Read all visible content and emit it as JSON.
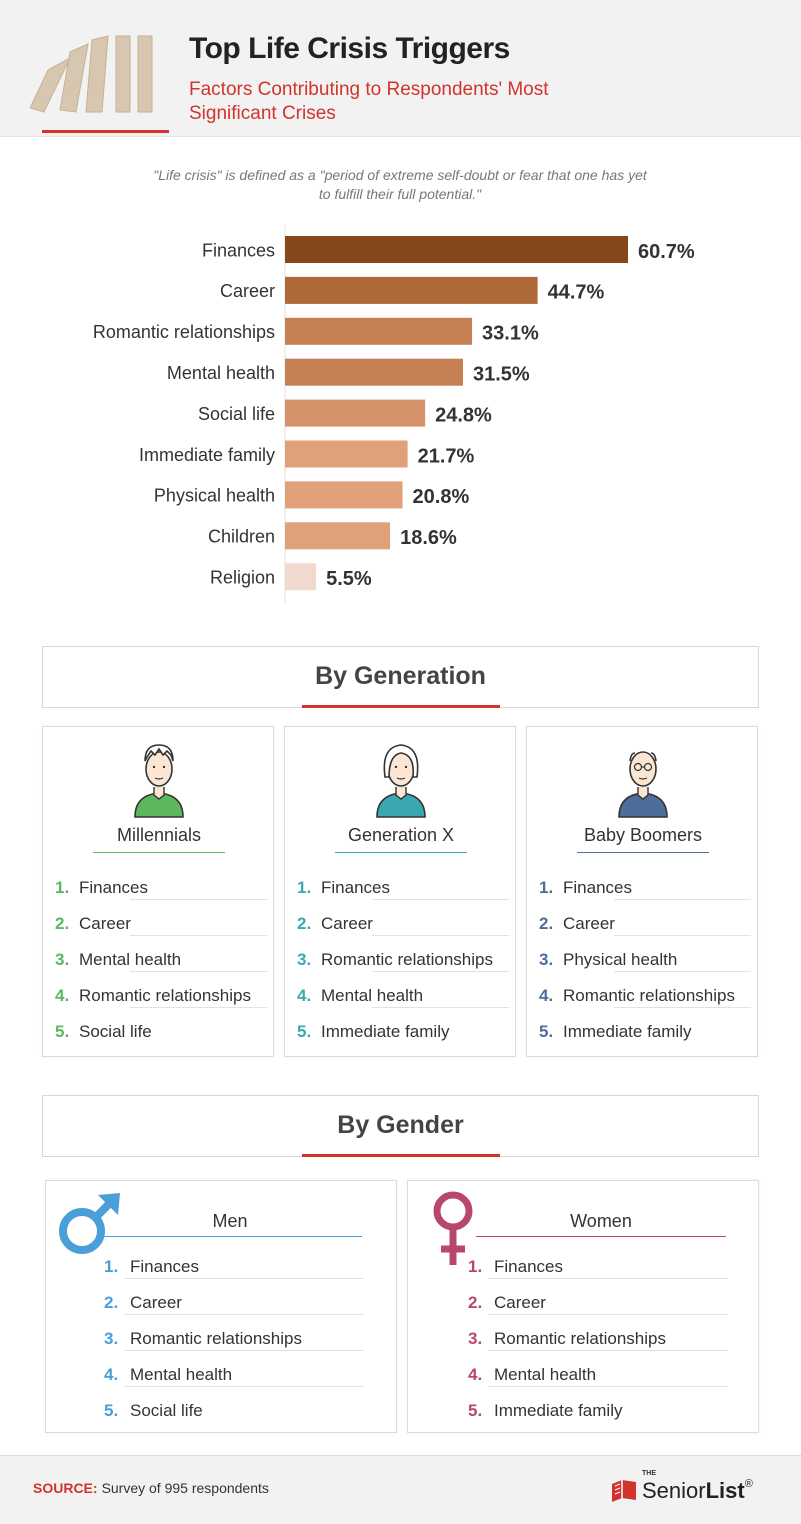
{
  "header": {
    "title": "Top Life Crisis Triggers",
    "subtitle": "Factors Contributing to Respondents' Most Significant Crises"
  },
  "definition": "\"Life crisis\" is defined as a \"period of extreme self-doubt or fear that one has yet to fulfill their full potential.\"",
  "chart_data": {
    "type": "bar",
    "orientation": "horizontal",
    "categories": [
      "Finances",
      "Career",
      "Romantic relationships",
      "Mental health",
      "Social life",
      "Immediate family",
      "Physical health",
      "Children",
      "Religion"
    ],
    "values": [
      60.7,
      44.7,
      33.1,
      31.5,
      24.8,
      21.7,
      20.8,
      18.6,
      5.5
    ],
    "labels": [
      "60.7%",
      "44.7%",
      "33.1%",
      "31.5%",
      "24.8%",
      "21.7%",
      "20.8%",
      "18.6%",
      "5.5%"
    ],
    "colors": [
      "#86471d",
      "#af6838",
      "#c67f52",
      "#c67f52",
      "#d4916a",
      "#dfa07a",
      "#dfa07a",
      "#dfa07a",
      "#f2d9cf"
    ],
    "xlim": [
      0,
      60.7
    ],
    "grid": false,
    "title": "",
    "xlabel": "",
    "ylabel": ""
  },
  "by_generation": {
    "heading": "By Generation",
    "groups": [
      {
        "name": "Millennials",
        "color": "#5cb85c",
        "items": [
          "Finances",
          "Career",
          "Mental health",
          "Romantic relationships",
          "Social life"
        ]
      },
      {
        "name": "Generation X",
        "color": "#3aa8b0",
        "items": [
          "Finances",
          "Career",
          "Romantic relationships",
          "Mental health",
          "Immediate family"
        ]
      },
      {
        "name": "Baby Boomers",
        "color": "#4f6d99",
        "items": [
          "Finances",
          "Career",
          "Physical health",
          "Romantic relationships",
          "Immediate family"
        ]
      }
    ]
  },
  "by_gender": {
    "heading": "By Gender",
    "groups": [
      {
        "name": "Men",
        "color": "#4a9fd8",
        "icon": "male-symbol-icon",
        "items": [
          "Finances",
          "Career",
          "Romantic relationships",
          "Mental health",
          "Social life"
        ]
      },
      {
        "name": "Women",
        "color": "#b8476c",
        "icon": "female-symbol-icon",
        "items": [
          "Finances",
          "Career",
          "Romantic relationships",
          "Mental health",
          "Immediate family"
        ]
      }
    ]
  },
  "footer": {
    "source_label": "SOURCE:",
    "source_text": "Survey of 995 respondents",
    "brand_the": "THE",
    "brand_senior": "Senior",
    "brand_list": "List",
    "brand_mark": "®"
  },
  "ranks": [
    "1.",
    "2.",
    "3.",
    "4.",
    "5."
  ]
}
